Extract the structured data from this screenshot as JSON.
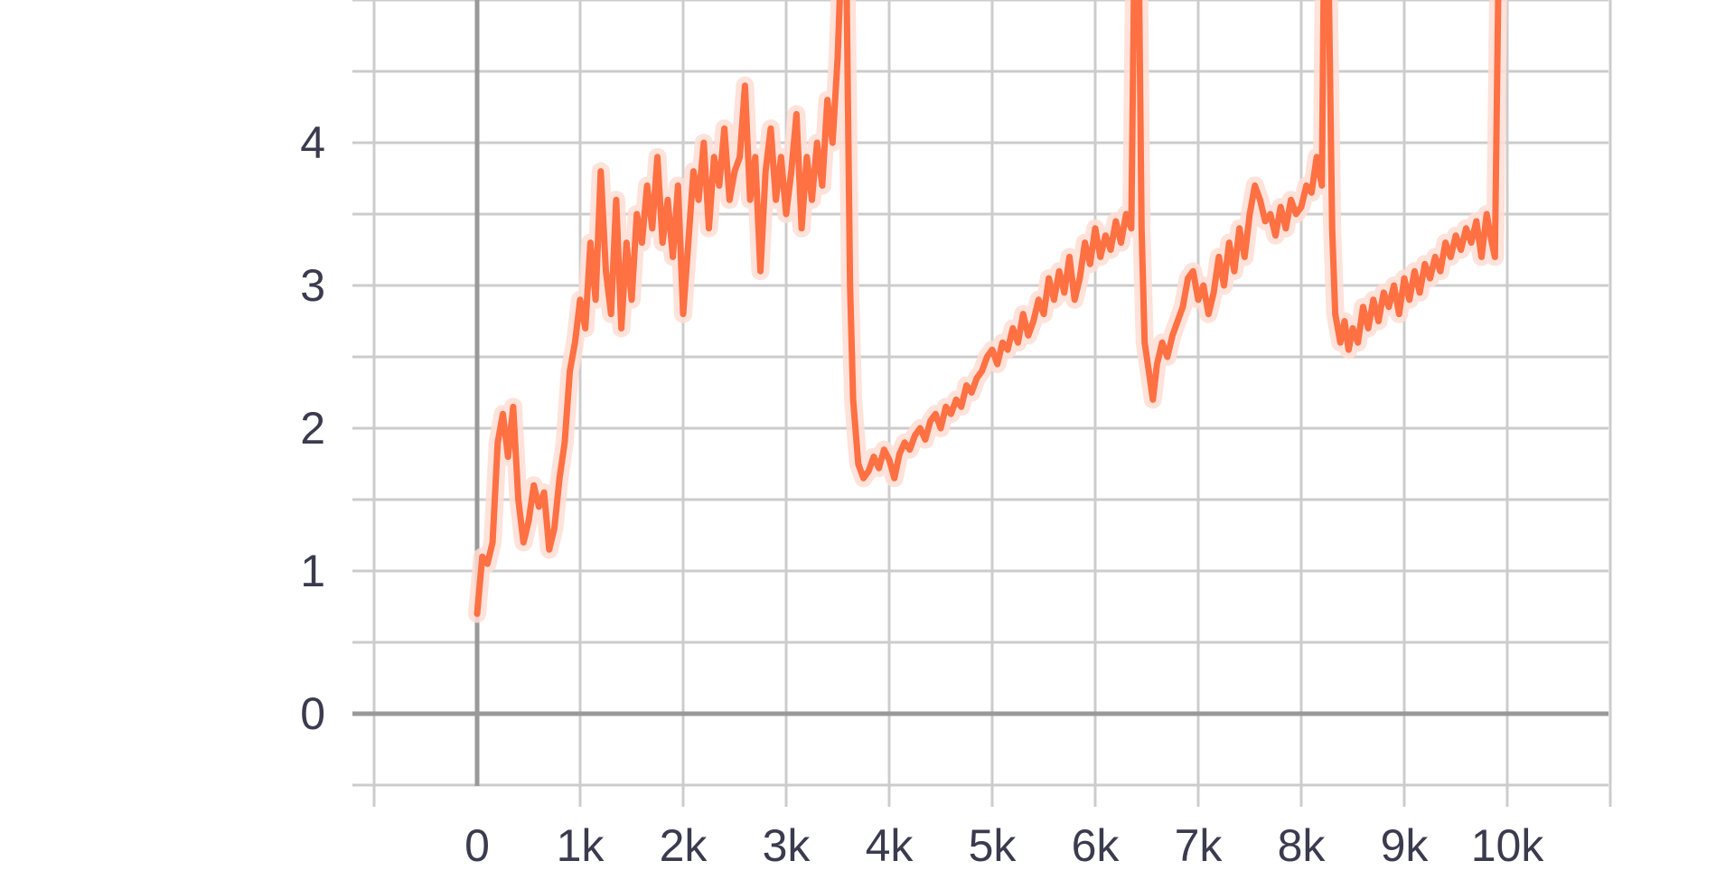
{
  "chart_data": {
    "type": "line",
    "title": "",
    "xlabel": "",
    "ylabel": "",
    "xlim": [
      -1000,
      11000
    ],
    "ylim": [
      -0.5,
      5
    ],
    "grid": true,
    "x_ticks": [
      {
        "value": 0,
        "label": "0"
      },
      {
        "value": 1000,
        "label": "1k"
      },
      {
        "value": 2000,
        "label": "2k"
      },
      {
        "value": 3000,
        "label": "3k"
      },
      {
        "value": 4000,
        "label": "4k"
      },
      {
        "value": 5000,
        "label": "5k"
      },
      {
        "value": 6000,
        "label": "6k"
      },
      {
        "value": 7000,
        "label": "7k"
      },
      {
        "value": 8000,
        "label": "8k"
      },
      {
        "value": 9000,
        "label": "9k"
      },
      {
        "value": 10000,
        "label": "10k"
      }
    ],
    "y_ticks": [
      {
        "value": 0,
        "label": "0"
      },
      {
        "value": 1,
        "label": "1"
      },
      {
        "value": 2,
        "label": "2"
      },
      {
        "value": 3,
        "label": "3"
      },
      {
        "value": 4,
        "label": "4"
      }
    ],
    "colors": {
      "smoothed": "#ff7043",
      "raw": "#ffddd3",
      "grid": "#cccccc",
      "zero_axis": "#999999"
    },
    "series": [
      {
        "points": [
          [
            0,
            0.7
          ],
          [
            50,
            1.1
          ],
          [
            100,
            1.05
          ],
          [
            150,
            1.2
          ],
          [
            200,
            1.9
          ],
          [
            250,
            2.1
          ],
          [
            300,
            1.8
          ],
          [
            350,
            2.15
          ],
          [
            400,
            1.5
          ],
          [
            450,
            1.2
          ],
          [
            500,
            1.35
          ],
          [
            550,
            1.6
          ],
          [
            600,
            1.45
          ],
          [
            650,
            1.55
          ],
          [
            700,
            1.15
          ],
          [
            750,
            1.3
          ],
          [
            800,
            1.65
          ],
          [
            850,
            1.9
          ],
          [
            900,
            2.4
          ],
          [
            950,
            2.6
          ],
          [
            1000,
            2.9
          ],
          [
            1050,
            2.7
          ],
          [
            1100,
            3.3
          ],
          [
            1150,
            2.9
          ],
          [
            1200,
            3.8
          ],
          [
            1250,
            3.1
          ],
          [
            1300,
            2.8
          ],
          [
            1350,
            3.6
          ],
          [
            1400,
            2.7
          ],
          [
            1450,
            3.3
          ],
          [
            1500,
            2.9
          ],
          [
            1550,
            3.5
          ],
          [
            1600,
            3.3
          ],
          [
            1650,
            3.7
          ],
          [
            1700,
            3.4
          ],
          [
            1750,
            3.9
          ],
          [
            1800,
            3.3
          ],
          [
            1850,
            3.6
          ],
          [
            1900,
            3.2
          ],
          [
            1950,
            3.7
          ],
          [
            2000,
            2.8
          ],
          [
            2050,
            3.3
          ],
          [
            2100,
            3.8
          ],
          [
            2150,
            3.6
          ],
          [
            2200,
            4.0
          ],
          [
            2250,
            3.4
          ],
          [
            2300,
            3.9
          ],
          [
            2350,
            3.7
          ],
          [
            2400,
            4.1
          ],
          [
            2450,
            3.6
          ],
          [
            2500,
            3.8
          ],
          [
            2550,
            3.9
          ],
          [
            2600,
            4.4
          ],
          [
            2650,
            3.6
          ],
          [
            2700,
            3.9
          ],
          [
            2750,
            3.1
          ],
          [
            2800,
            3.8
          ],
          [
            2850,
            4.1
          ],
          [
            2900,
            3.6
          ],
          [
            2950,
            3.9
          ],
          [
            3000,
            3.5
          ],
          [
            3050,
            3.8
          ],
          [
            3100,
            4.2
          ],
          [
            3150,
            3.4
          ],
          [
            3200,
            3.9
          ],
          [
            3250,
            3.6
          ],
          [
            3300,
            4.0
          ],
          [
            3350,
            3.7
          ],
          [
            3400,
            4.3
          ],
          [
            3450,
            4.0
          ],
          [
            3500,
            4.6
          ],
          [
            3530,
            5.2
          ],
          [
            3580,
            5.5
          ],
          [
            3620,
            3.0
          ],
          [
            3650,
            2.2
          ],
          [
            3700,
            1.75
          ],
          [
            3750,
            1.65
          ],
          [
            3800,
            1.7
          ],
          [
            3850,
            1.8
          ],
          [
            3900,
            1.72
          ],
          [
            3950,
            1.85
          ],
          [
            4000,
            1.78
          ],
          [
            4050,
            1.65
          ],
          [
            4100,
            1.82
          ],
          [
            4150,
            1.9
          ],
          [
            4200,
            1.85
          ],
          [
            4250,
            1.95
          ],
          [
            4300,
            2.0
          ],
          [
            4350,
            1.92
          ],
          [
            4400,
            2.05
          ],
          [
            4450,
            2.1
          ],
          [
            4500,
            2.0
          ],
          [
            4550,
            2.15
          ],
          [
            4600,
            2.1
          ],
          [
            4650,
            2.2
          ],
          [
            4700,
            2.15
          ],
          [
            4750,
            2.3
          ],
          [
            4800,
            2.25
          ],
          [
            4850,
            2.35
          ],
          [
            4900,
            2.4
          ],
          [
            4950,
            2.5
          ],
          [
            5000,
            2.55
          ],
          [
            5050,
            2.45
          ],
          [
            5100,
            2.6
          ],
          [
            5150,
            2.55
          ],
          [
            5200,
            2.7
          ],
          [
            5250,
            2.6
          ],
          [
            5300,
            2.8
          ],
          [
            5350,
            2.65
          ],
          [
            5400,
            2.75
          ],
          [
            5450,
            2.9
          ],
          [
            5500,
            2.8
          ],
          [
            5550,
            3.05
          ],
          [
            5600,
            2.9
          ],
          [
            5650,
            3.1
          ],
          [
            5700,
            2.95
          ],
          [
            5750,
            3.2
          ],
          [
            5800,
            2.9
          ],
          [
            5850,
            3.05
          ],
          [
            5900,
            3.3
          ],
          [
            5950,
            3.15
          ],
          [
            6000,
            3.4
          ],
          [
            6050,
            3.2
          ],
          [
            6100,
            3.35
          ],
          [
            6150,
            3.25
          ],
          [
            6200,
            3.45
          ],
          [
            6250,
            3.3
          ],
          [
            6300,
            3.5
          ],
          [
            6350,
            3.4
          ],
          [
            6380,
            5.3
          ],
          [
            6420,
            5.5
          ],
          [
            6450,
            3.4
          ],
          [
            6480,
            2.6
          ],
          [
            6520,
            2.4
          ],
          [
            6560,
            2.2
          ],
          [
            6600,
            2.45
          ],
          [
            6650,
            2.6
          ],
          [
            6700,
            2.5
          ],
          [
            6750,
            2.65
          ],
          [
            6800,
            2.75
          ],
          [
            6850,
            2.85
          ],
          [
            6900,
            3.05
          ],
          [
            6950,
            3.1
          ],
          [
            7000,
            2.9
          ],
          [
            7050,
            3.0
          ],
          [
            7100,
            2.8
          ],
          [
            7150,
            2.95
          ],
          [
            7200,
            3.2
          ],
          [
            7250,
            3.0
          ],
          [
            7300,
            3.3
          ],
          [
            7350,
            3.1
          ],
          [
            7400,
            3.4
          ],
          [
            7450,
            3.2
          ],
          [
            7500,
            3.5
          ],
          [
            7550,
            3.7
          ],
          [
            7600,
            3.6
          ],
          [
            7650,
            3.45
          ],
          [
            7700,
            3.5
          ],
          [
            7750,
            3.35
          ],
          [
            7800,
            3.55
          ],
          [
            7850,
            3.4
          ],
          [
            7900,
            3.6
          ],
          [
            7950,
            3.5
          ],
          [
            8000,
            3.55
          ],
          [
            8050,
            3.7
          ],
          [
            8100,
            3.65
          ],
          [
            8150,
            3.9
          ],
          [
            8200,
            3.7
          ],
          [
            8220,
            5.3
          ],
          [
            8260,
            5.5
          ],
          [
            8300,
            3.4
          ],
          [
            8330,
            2.8
          ],
          [
            8380,
            2.6
          ],
          [
            8420,
            2.75
          ],
          [
            8460,
            2.55
          ],
          [
            8500,
            2.7
          ],
          [
            8550,
            2.6
          ],
          [
            8600,
            2.85
          ],
          [
            8650,
            2.7
          ],
          [
            8700,
            2.9
          ],
          [
            8750,
            2.75
          ],
          [
            8800,
            2.95
          ],
          [
            8850,
            2.85
          ],
          [
            8900,
            3.0
          ],
          [
            8950,
            2.8
          ],
          [
            9000,
            3.05
          ],
          [
            9050,
            2.9
          ],
          [
            9100,
            3.1
          ],
          [
            9150,
            2.95
          ],
          [
            9200,
            3.15
          ],
          [
            9250,
            3.05
          ],
          [
            9300,
            3.2
          ],
          [
            9350,
            3.1
          ],
          [
            9400,
            3.3
          ],
          [
            9450,
            3.2
          ],
          [
            9500,
            3.35
          ],
          [
            9550,
            3.25
          ],
          [
            9600,
            3.4
          ],
          [
            9650,
            3.3
          ],
          [
            9700,
            3.45
          ],
          [
            9750,
            3.2
          ],
          [
            9800,
            3.5
          ],
          [
            9850,
            3.3
          ],
          [
            9880,
            3.2
          ],
          [
            9920,
            5.5
          ]
        ]
      }
    ]
  }
}
